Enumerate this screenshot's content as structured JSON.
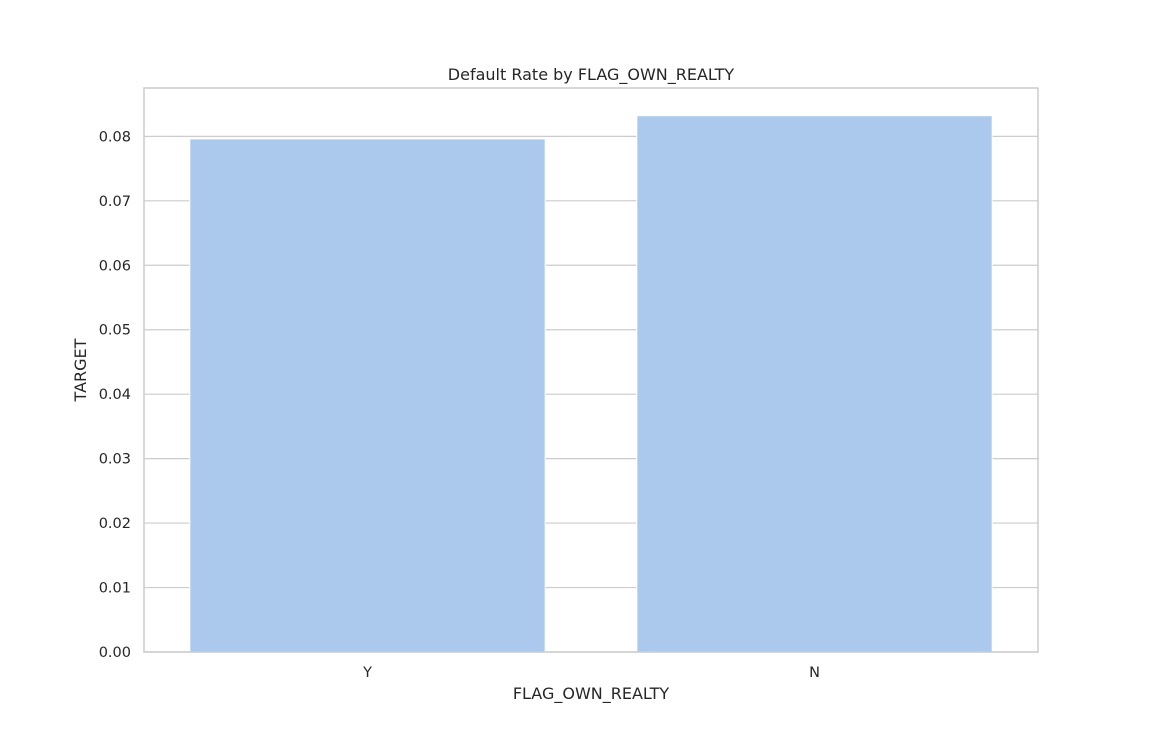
{
  "chart_data": {
    "type": "bar",
    "title": "Default Rate by FLAG_OWN_REALTY",
    "xlabel": "FLAG_OWN_REALTY",
    "ylabel": "TARGET",
    "categories": [
      "Y",
      "N"
    ],
    "values": [
      0.0796,
      0.0832
    ],
    "ylim": [
      0,
      0.0875
    ],
    "yticks": [
      "0.00",
      "0.01",
      "0.02",
      "0.03",
      "0.04",
      "0.05",
      "0.06",
      "0.07",
      "0.08"
    ],
    "grid": true,
    "bar_color": "#abc9ed",
    "grid_color": "#cccccc",
    "spine_color": "#cccccc"
  }
}
